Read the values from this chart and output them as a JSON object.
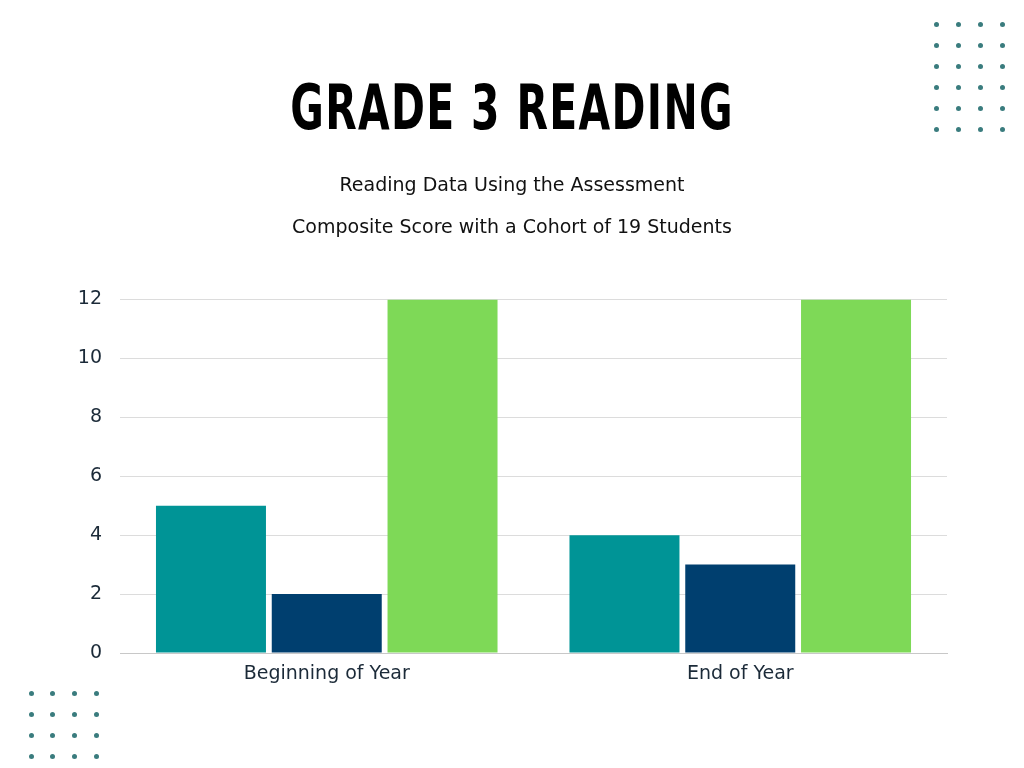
{
  "chart_data": {
    "type": "bar",
    "title": "GRADE 3 READING",
    "subtitle": "Reading Data Using the Assessment\nComposite Score with a Cohort of 19 Students",
    "categories": [
      "Beginning of Year",
      "End of Year"
    ],
    "series": [
      {
        "color": "#009496",
        "values": [
          5,
          4
        ]
      },
      {
        "color": "#003f6f",
        "values": [
          2,
          3
        ]
      },
      {
        "color": "#7ed957",
        "values": [
          12,
          12
        ]
      }
    ],
    "ylim": [
      0,
      12
    ],
    "yticks": [
      0,
      2,
      4,
      6,
      8,
      10,
      12
    ],
    "grid": "y"
  }
}
